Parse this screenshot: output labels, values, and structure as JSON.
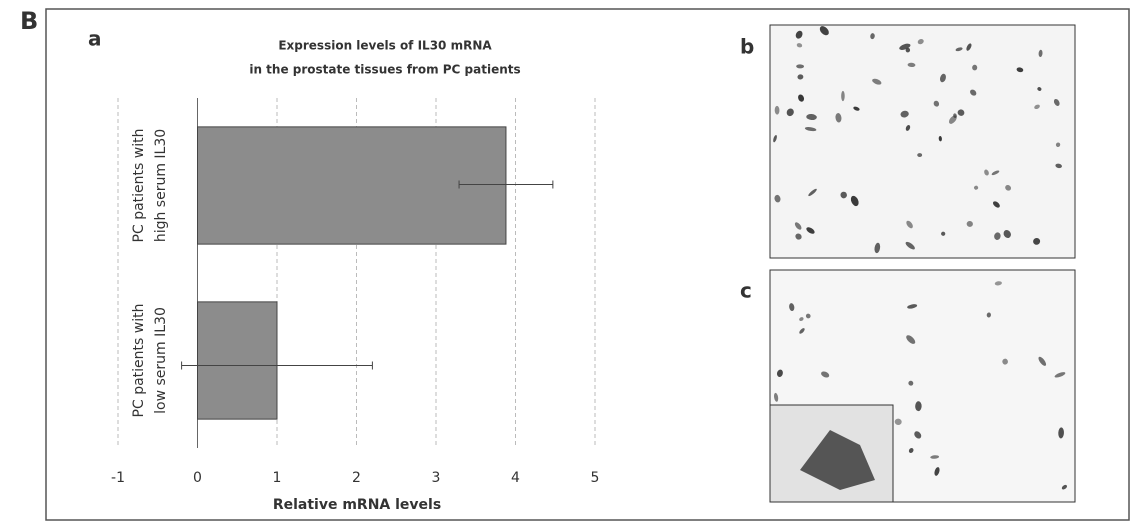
{
  "figure_label": "B",
  "panels": {
    "a": "a",
    "b": "b",
    "c": "c"
  },
  "chart_data": {
    "type": "bar",
    "orientation": "horizontal",
    "title": [
      "Expression levels of IL30 mRNA",
      "in the prostate tissues from PC patients"
    ],
    "categories": [
      [
        "PC patients with",
        "high serum IL30"
      ],
      [
        "PC patients with",
        "low serum IL30"
      ]
    ],
    "values": [
      3.88,
      1.0
    ],
    "errors": [
      0.59,
      1.2
    ],
    "color": "#8c8c8c",
    "xlabel": "Relative mRNA levels",
    "xlim": [
      -1,
      5
    ],
    "xticks": [
      -1,
      0,
      1,
      2,
      3,
      4,
      5
    ],
    "grid": true
  }
}
